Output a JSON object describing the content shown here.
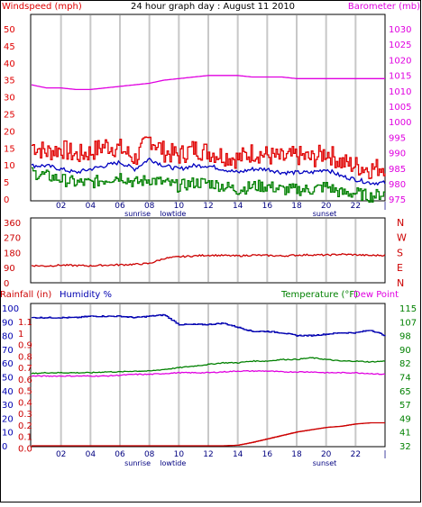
{
  "header": {
    "title": "24 hour graph day : August 11 2010",
    "left_label": "Windspeed (mph)",
    "right_label": "Barometer (mb)"
  },
  "x_ticks": [
    "02",
    "04",
    "06",
    "08",
    "10",
    "12",
    "14",
    "16",
    "18",
    "20",
    "22",
    "|"
  ],
  "events": [
    "sunrise",
    "lowtide",
    "sunset"
  ],
  "colors": {
    "windspeed": "#e00000",
    "gust": "#e00000",
    "avg": "#0000c0",
    "low": "#008000",
    "barometer": "#e000e0",
    "winddir": "#cc0000",
    "humidity": "#0000b0",
    "temperature": "#008000",
    "dewpoint": "#e000e0",
    "rainfall": "#cc0000",
    "grid": "#c8c8c8",
    "frame": "#000000"
  },
  "chart_data": [
    {
      "type": "line",
      "title": "24 hour graph day : August 11 2010",
      "ylabel": "Windspeed (mph)",
      "ylabel_right": "Barometer (mb)",
      "y_ticks": [
        "50",
        "45",
        "40",
        "35",
        "30",
        "25",
        "20",
        "15",
        "10",
        "5",
        "0"
      ],
      "y_right_ticks": [
        "1030",
        "1025",
        "1020",
        "1015",
        "1010",
        "1005",
        "1000",
        "995",
        "990",
        "985",
        "980",
        "975"
      ],
      "ylim": [
        0,
        50
      ],
      "ylim_right": [
        975,
        1030
      ],
      "x_hours": [
        0,
        1,
        2,
        3,
        4,
        5,
        6,
        7,
        8,
        9,
        10,
        11,
        12,
        13,
        14,
        15,
        16,
        17,
        18,
        19,
        20,
        21,
        22,
        23,
        24
      ],
      "series": [
        {
          "values": [
            16,
            14,
            15,
            13,
            14,
            16,
            15,
            12,
            18,
            14,
            13,
            15,
            14,
            13,
            12,
            14,
            13,
            12,
            13,
            12,
            14,
            11,
            10,
            9,
            10
          ]
        },
        {
          "values": [
            10,
            10,
            9,
            8,
            9,
            10,
            11,
            9,
            12,
            10,
            9,
            10,
            10,
            9,
            8,
            9,
            9,
            8,
            8,
            8,
            9,
            7,
            6,
            5,
            5
          ]
        },
        {
          "values": [
            8,
            7,
            6,
            5,
            5,
            6,
            7,
            5,
            6,
            5,
            4,
            5,
            5,
            4,
            3,
            4,
            4,
            3,
            3,
            3,
            4,
            2,
            2,
            1,
            2
          ]
        },
        {
          "values": [
            1012,
            1011,
            1011,
            1010.5,
            1010.5,
            1011,
            1011.5,
            1012,
            1012.5,
            1013.5,
            1014,
            1014.5,
            1015,
            1015,
            1015,
            1014.5,
            1014.5,
            1014.5,
            1014,
            1014,
            1014,
            1014,
            1014,
            1014,
            1014
          ]
        }
      ]
    },
    {
      "type": "line",
      "y_ticks": [
        "360",
        "270",
        "180",
        "90",
        "0"
      ],
      "y_right_ticks": [
        "N",
        "W",
        "S",
        "E",
        "N"
      ],
      "ylim": [
        0,
        360
      ],
      "x_hours": [
        0,
        1,
        2,
        3,
        4,
        5,
        6,
        7,
        8,
        9,
        10,
        11,
        12,
        13,
        14,
        15,
        16,
        17,
        18,
        19,
        20,
        21,
        22,
        23,
        24
      ],
      "series": [
        {
          "values": [
            98,
            95,
            100,
            98,
            96,
            100,
            102,
            105,
            110,
            140,
            150,
            155,
            160,
            158,
            155,
            160,
            158,
            155,
            160,
            162,
            160,
            165,
            162,
            158,
            160
          ]
        }
      ]
    },
    {
      "type": "line",
      "ylabel": "Rainfall (in)",
      "ylabel2": "Humidity %",
      "ylabel_right": "Temperature (°F)",
      "ylabel_right2": "Dew Point",
      "y_ticks_rain": [
        "1.1",
        "1",
        "0.9",
        "0.8",
        "0.7",
        "0.6",
        "0.5",
        "0.4",
        "0.3",
        "0.2",
        "0.1",
        "0.0"
      ],
      "y_ticks_humidity": [
        "100",
        "90",
        "80",
        "70",
        "60",
        "50",
        "40",
        "30",
        "20",
        "10",
        "0"
      ],
      "y_right_ticks": [
        "115",
        "107",
        "98",
        "90",
        "82",
        "74",
        "65",
        "57",
        "49",
        "41",
        "32"
      ],
      "ylim_rain": [
        0,
        1.1
      ],
      "ylim_humidity": [
        0,
        100
      ],
      "ylim_temp": [
        32,
        115
      ],
      "x_hours": [
        0,
        1,
        2,
        3,
        4,
        5,
        6,
        7,
        8,
        9,
        10,
        11,
        12,
        13,
        14,
        15,
        16,
        17,
        18,
        19,
        20,
        21,
        22,
        23,
        24
      ],
      "series": [
        {
          "values": [
            93,
            93,
            93,
            93,
            94,
            94,
            94,
            93,
            94,
            95,
            88,
            88,
            88,
            89,
            86,
            83,
            83,
            82,
            80,
            80,
            81,
            82,
            82,
            84,
            80
          ]
        },
        {
          "values": [
            75.5,
            76,
            76,
            76,
            76,
            76.5,
            76.5,
            77,
            77,
            78,
            79,
            80,
            81,
            82,
            82,
            83,
            83,
            84,
            84,
            85,
            84,
            83,
            83,
            82.5,
            83
          ]
        },
        {
          "values": [
            74,
            74,
            74,
            74,
            74,
            74,
            74.5,
            75,
            75,
            75.5,
            76,
            76,
            76,
            76.5,
            77,
            77,
            77,
            76.5,
            76.5,
            76.5,
            76,
            76,
            76,
            75.5,
            75
          ]
        },
        {
          "values": [
            0,
            0,
            0,
            0,
            0,
            0,
            0,
            0,
            0,
            0,
            0,
            0,
            0,
            0,
            0.005,
            0.03,
            0.06,
            0.09,
            0.12,
            0.14,
            0.16,
            0.17,
            0.19,
            0.2,
            0.2
          ]
        }
      ]
    }
  ]
}
